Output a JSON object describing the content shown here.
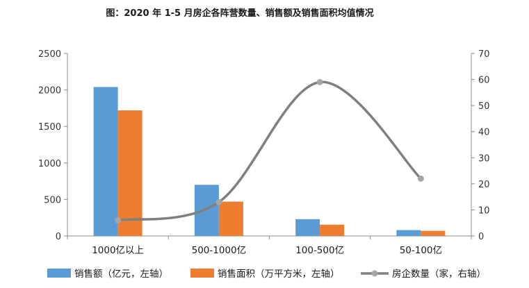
{
  "chart_data": {
    "type": "bar",
    "title": "图：2020 年 1-5 月房企各阵营数量、销售额及销售面积均值情况",
    "categories": [
      "1000亿以上",
      "500-1000亿",
      "100-500亿",
      "50-100亿"
    ],
    "series": [
      {
        "name": "销售额（亿元，左轴）",
        "type": "bar",
        "axis": "left",
        "color": "#5b9bd5",
        "values": [
          2040,
          700,
          230,
          80
        ]
      },
      {
        "name": "销售面积（万平方米，左轴）",
        "type": "bar",
        "axis": "left",
        "color": "#ed7d31",
        "values": [
          1720,
          470,
          155,
          70
        ]
      },
      {
        "name": "房企数量（家，右轴）",
        "type": "line",
        "axis": "right",
        "color": "#7f7f7f",
        "smooth": true,
        "values": [
          6,
          13,
          59,
          22
        ]
      }
    ],
    "y_left": {
      "ylim": [
        0,
        2500
      ],
      "ticks": [
        "0",
        "500",
        "1000",
        "1500",
        "2000",
        "2500"
      ]
    },
    "y_right": {
      "ylim": [
        0,
        70
      ],
      "ticks": [
        "0",
        "10",
        "20",
        "30",
        "40",
        "50",
        "60",
        "70"
      ]
    },
    "grid": false,
    "legend_position": "bottom"
  }
}
